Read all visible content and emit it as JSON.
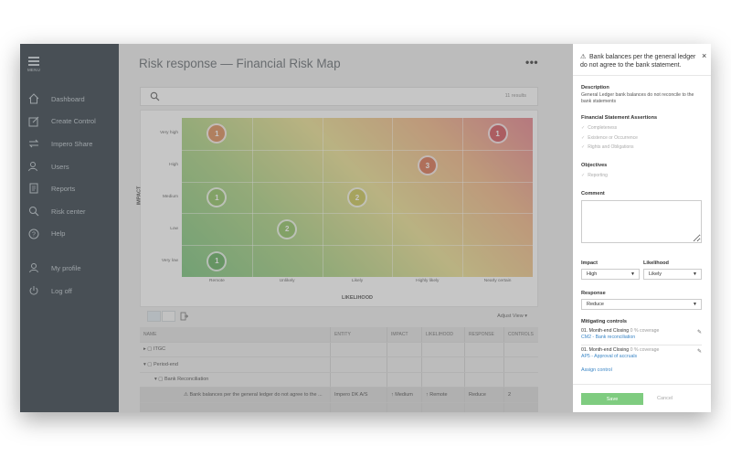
{
  "sidebar": {
    "menu_label": "MENU",
    "items": [
      {
        "label": "Dashboard",
        "icon": "home-icon"
      },
      {
        "label": "Create Control",
        "icon": "edit-icon"
      },
      {
        "label": "Impero Share",
        "icon": "share-icon"
      },
      {
        "label": "Users",
        "icon": "users-icon"
      },
      {
        "label": "Reports",
        "icon": "reports-icon"
      },
      {
        "label": "Risk center",
        "icon": "search-icon"
      },
      {
        "label": "Help",
        "icon": "help-icon"
      }
    ],
    "bottom_items": [
      {
        "label": "My profile",
        "icon": "user-icon"
      },
      {
        "label": "Log off",
        "icon": "power-icon"
      }
    ]
  },
  "main": {
    "title": "Risk response — Financial Risk Map",
    "more": "•••",
    "search": {
      "placeholder": "",
      "count": "11 results"
    },
    "matrix": {
      "ylabel": "IMPACT",
      "xlabel": "LIKELIHOOD",
      "impact_levels": [
        "Very high",
        "High",
        "Medium",
        "Low",
        "Very low"
      ],
      "likelihood_levels": [
        "Remote",
        "Unlikely",
        "Likely",
        "Highly likely",
        "Nearly certain"
      ],
      "bubbles": [
        {
          "impact": "Very high",
          "likelihood": "Remote",
          "count": "1",
          "color": "#d9864f"
        },
        {
          "impact": "Very high",
          "likelihood": "Nearly certain",
          "count": "1",
          "color": "#d04a52"
        },
        {
          "impact": "High",
          "likelihood": "Highly likely",
          "count": "3",
          "color": "#d86a46"
        },
        {
          "impact": "Medium",
          "likelihood": "Remote",
          "count": "1",
          "color": "#8bbf5a"
        },
        {
          "impact": "Medium",
          "likelihood": "Likely",
          "count": "2",
          "color": "#c9c34c"
        },
        {
          "impact": "Low",
          "likelihood": "Unlikely",
          "count": "2",
          "color": "#8bbf5a"
        },
        {
          "impact": "Very low",
          "likelihood": "Remote",
          "count": "1",
          "color": "#5aa955"
        }
      ]
    },
    "toolbar": {
      "adjust_view": "Adjust View ▾"
    },
    "table": {
      "headers": [
        "NAME",
        "ENTITY",
        "IMPACT",
        "LIKELIHOOD",
        "RESPONSE",
        "CONTROLS"
      ],
      "rows": [
        {
          "name": "▸  ▢ ITGC",
          "entity": "",
          "impact": "",
          "likelihood": "",
          "response": "",
          "controls": ""
        },
        {
          "name": "▾  ▢ Period-end",
          "entity": "",
          "impact": "",
          "likelihood": "",
          "response": "",
          "controls": ""
        },
        {
          "name": "▾  ▢ Bank Reconciliation",
          "entity": "",
          "impact": "",
          "likelihood": "",
          "response": "",
          "controls": ""
        },
        {
          "name": "⚠ Bank balances per the general ledger do not agree to the ...",
          "entity": "Impero DK A/S",
          "impact": "↑ Medium",
          "likelihood": "↑ Remote",
          "response": "Reduce",
          "controls": "2"
        },
        {
          "name": "",
          "entity": "",
          "impact": "",
          "likelihood": "",
          "response": "",
          "controls": ""
        }
      ]
    }
  },
  "panel": {
    "title": "Bank balances per the general ledger do not agree to the bank statement.",
    "close": "×",
    "description_title": "Description",
    "description": "General Ledger bank balances do not reconcile to the bank statements",
    "assertions_title": "Financial Statement Assertions",
    "assertions": [
      "Completeness",
      "Existence or Occurrence",
      "Rights and Obligations"
    ],
    "objectives_title": "Objectives",
    "objectives": [
      "Reporting"
    ],
    "comment_title": "Comment",
    "impact_label": "Impact",
    "impact_value": "High",
    "likelihood_label": "Likelihood",
    "likelihood_value": "Likely",
    "response_label": "Response",
    "response_value": "Reduce",
    "mitigating_title": "Mitigating controls",
    "controls": [
      {
        "name": "01. Month-end Closing",
        "coverage": "0 % coverage",
        "link": "CM2 - Bank reconciliation"
      },
      {
        "name": "01. Month-end Closing",
        "coverage": "0 % coverage",
        "link": "AP5 - Approval of accruals"
      }
    ],
    "assign": "Assign control",
    "save": "Save",
    "cancel": "Cancel"
  }
}
